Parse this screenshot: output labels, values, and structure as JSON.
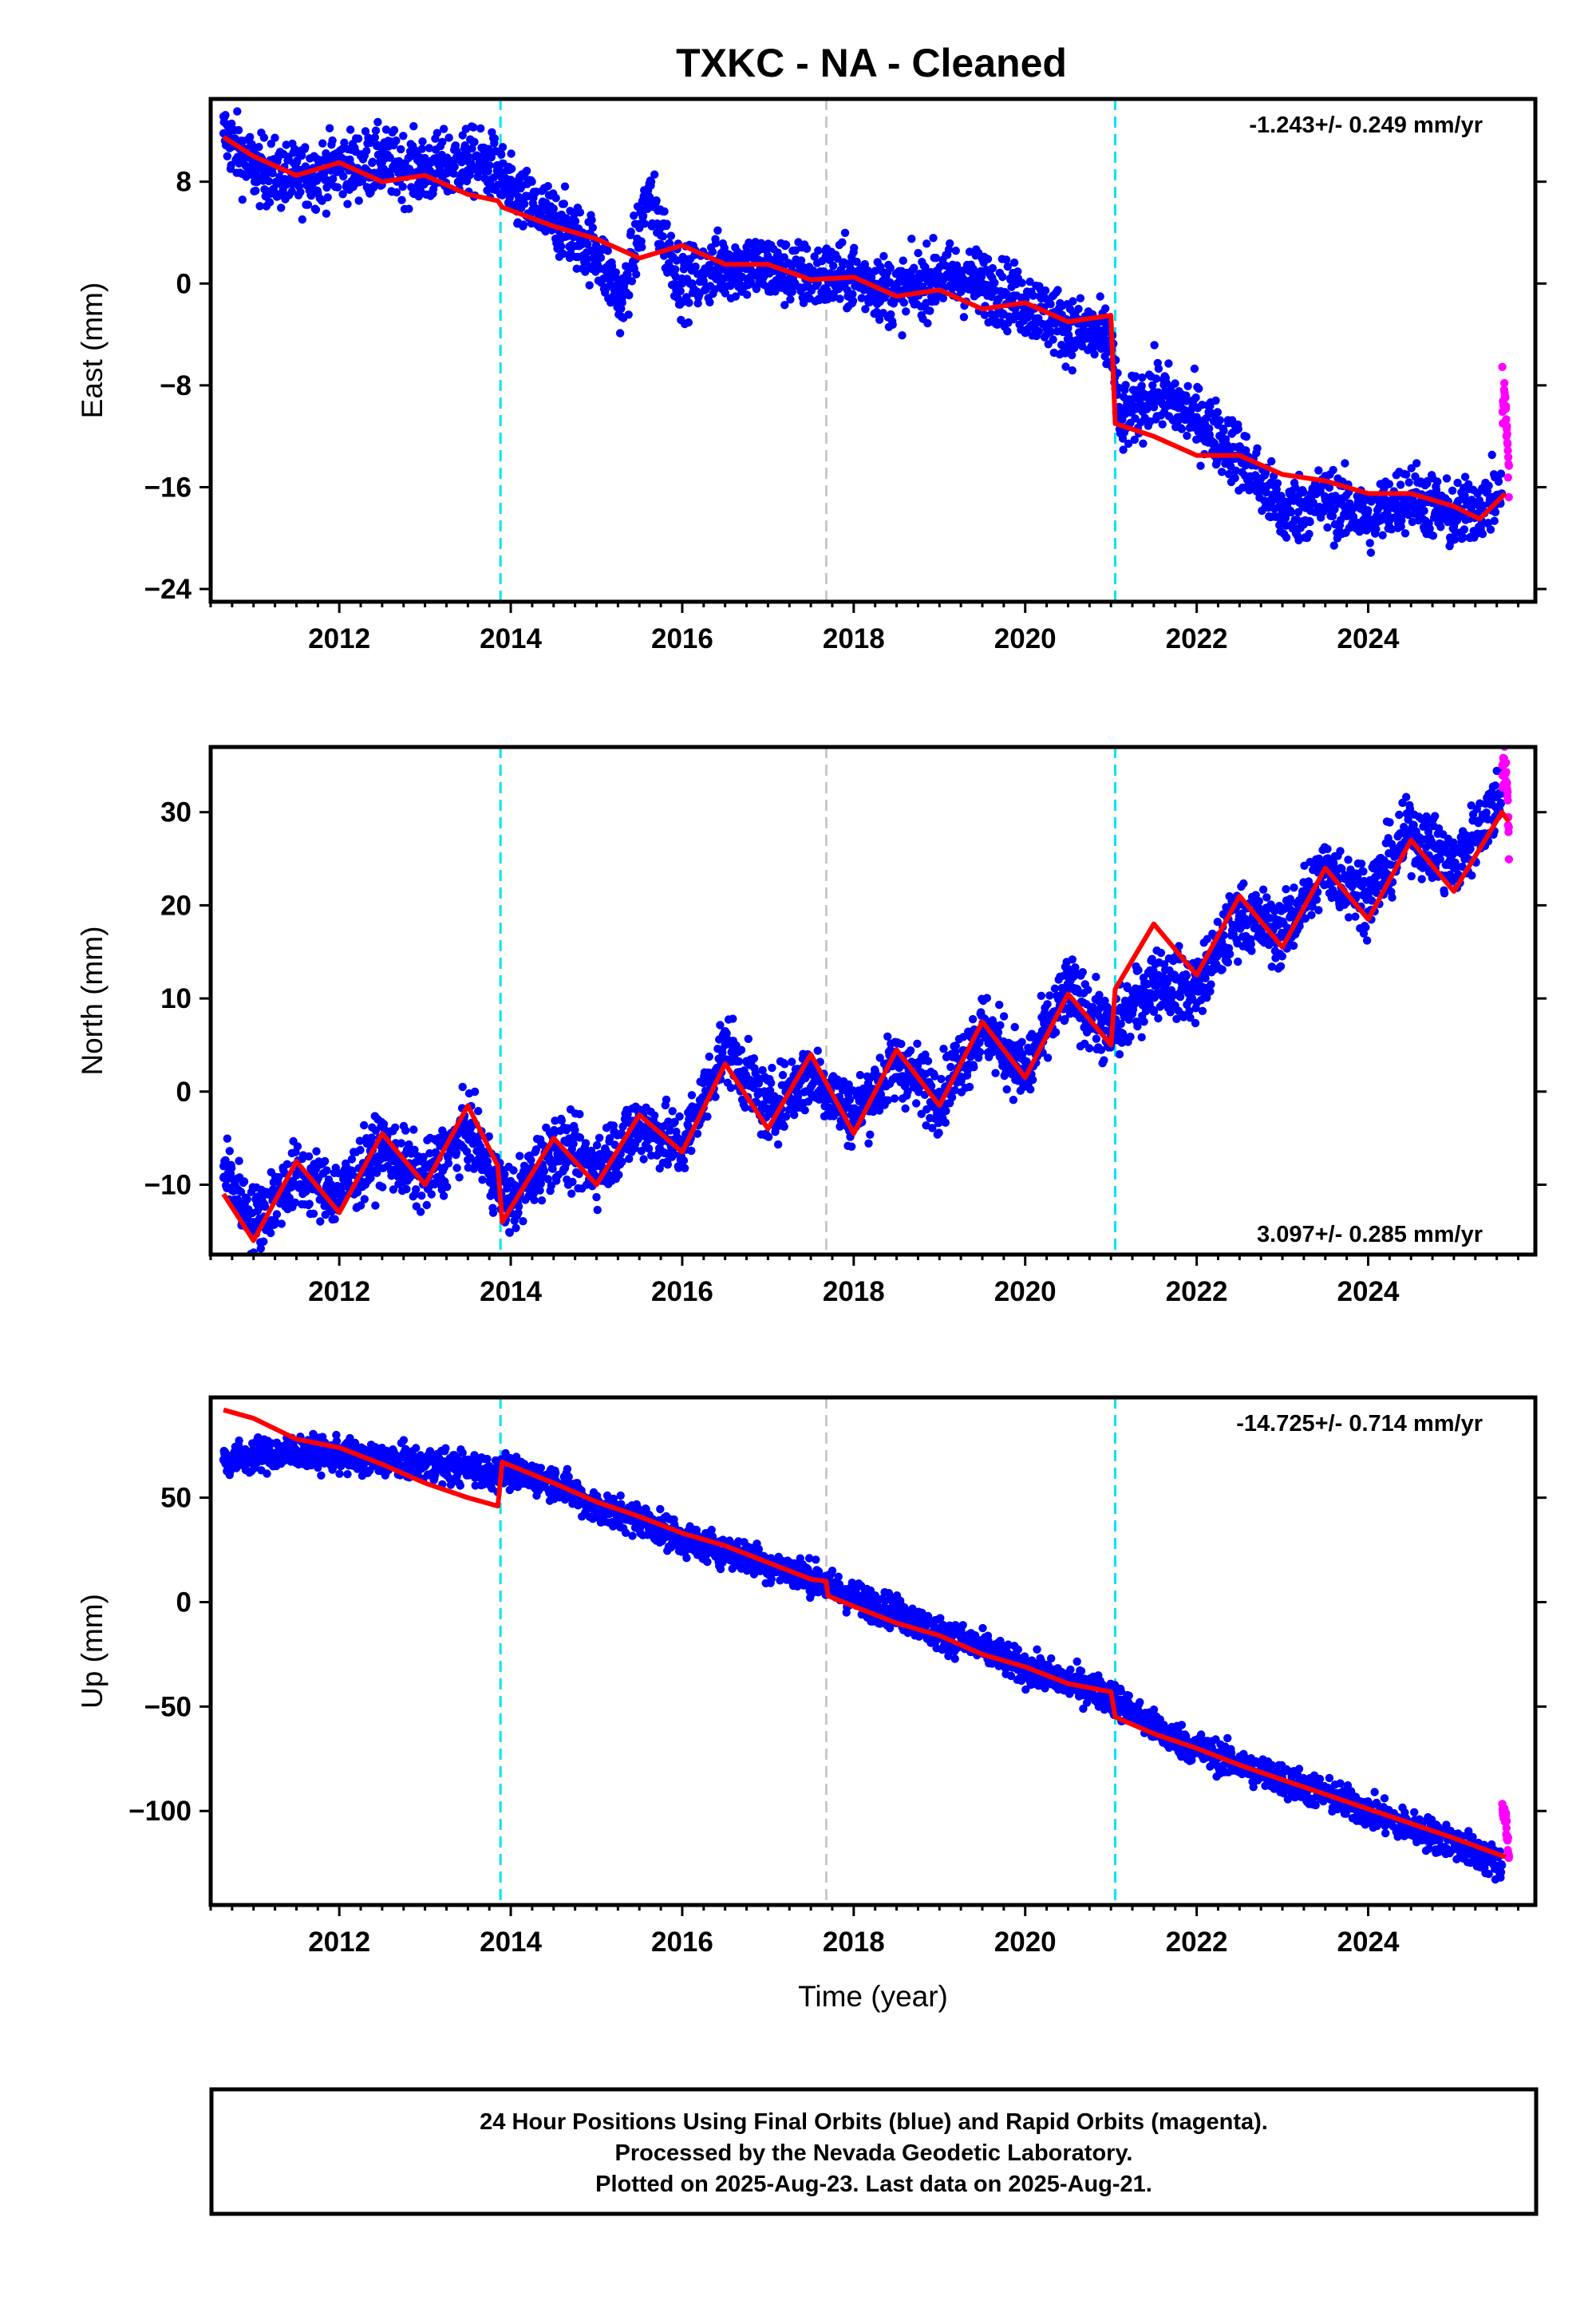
{
  "title": "TXKC  - NA - Cleaned",
  "colors": {
    "final": "#0000ff",
    "rapid": "#ff00ff",
    "model": "#ff0000",
    "equipment_change": "#00e5ee",
    "other_event": "#c8c8c8",
    "frame": "#000000"
  },
  "footer": {
    "lines": [
      "24 Hour Positions Using Final Orbits (blue) and Rapid Orbits (magenta).",
      "Processed by the Nevada Geodetic Laboratory.",
      "Plotted on 2025-Aug-23. Last data on 2025-Aug-21."
    ]
  },
  "chart_data": [
    {
      "type": "scatter",
      "component": "east",
      "ylabel": "East (mm)",
      "xlabel": "",
      "xlim": [
        2010.5,
        2025.95
      ],
      "ylim": [
        -25,
        14.5
      ],
      "yticks": [
        8,
        0,
        -8,
        -16,
        -24
      ],
      "xticks": [
        2012,
        2014,
        2016,
        2018,
        2020,
        2022,
        2024
      ],
      "rate_label": "-1.243+/- 0.249 mm/yr",
      "rate_position": "top-right",
      "events_cyan": [
        2013.88,
        2021.05
      ],
      "events_gray": [
        2017.68
      ],
      "first_data": 2010.65,
      "last_final": 2025.56,
      "last_data": 2025.64,
      "series": [
        {
          "name": "Final Orbits",
          "color": "blue",
          "points": [
            [
              2010.65,
              11.8
            ],
            [
              2011.0,
              9.0
            ],
            [
              2011.5,
              8.2
            ],
            [
              2012.0,
              9.2
            ],
            [
              2012.5,
              9.5
            ],
            [
              2013.0,
              8.8
            ],
            [
              2013.5,
              9.6
            ],
            [
              2013.85,
              9.0
            ],
            [
              2014.0,
              7.0
            ],
            [
              2014.5,
              5.0
            ],
            [
              2015.0,
              2.5
            ],
            [
              2015.3,
              -1.5
            ],
            [
              2015.6,
              7.0
            ],
            [
              2016.0,
              0.0
            ],
            [
              2016.5,
              1.5
            ],
            [
              2017.0,
              1.2
            ],
            [
              2017.5,
              0.5
            ],
            [
              2018.0,
              0.6
            ],
            [
              2018.5,
              -0.8
            ],
            [
              2019.0,
              0.6
            ],
            [
              2019.5,
              0.0
            ],
            [
              2020.0,
              -1.5
            ],
            [
              2020.5,
              -3.5
            ],
            [
              2021.0,
              -4.5
            ],
            [
              2021.1,
              -11.0
            ],
            [
              2021.5,
              -8.5
            ],
            [
              2022.0,
              -10.5
            ],
            [
              2022.5,
              -13.5
            ],
            [
              2023.0,
              -18.0
            ],
            [
              2023.5,
              -17.0
            ],
            [
              2024.0,
              -18.5
            ],
            [
              2024.5,
              -16.5
            ],
            [
              2025.0,
              -18.5
            ],
            [
              2025.56,
              -16.5
            ]
          ]
        },
        {
          "name": "Rapid Orbits",
          "color": "magenta",
          "points": [
            [
              2025.6,
              -9.0
            ],
            [
              2025.62,
              -12.5
            ],
            [
              2025.64,
              -15.0
            ]
          ]
        },
        {
          "name": "Model",
          "color": "red",
          "points": [
            [
              2010.65,
              11.5
            ],
            [
              2011.0,
              10.0
            ],
            [
              2011.5,
              8.5
            ],
            [
              2012.0,
              9.5
            ],
            [
              2012.5,
              8.0
            ],
            [
              2013.0,
              8.5
            ],
            [
              2013.5,
              7.0
            ],
            [
              2013.85,
              6.5
            ],
            [
              2013.9,
              6.0
            ],
            [
              2014.5,
              4.5
            ],
            [
              2015.0,
              3.5
            ],
            [
              2015.5,
              2.0
            ],
            [
              2016.0,
              3.0
            ],
            [
              2016.5,
              1.5
            ],
            [
              2017.0,
              1.5
            ],
            [
              2017.5,
              0.3
            ],
            [
              2018.0,
              0.5
            ],
            [
              2018.5,
              -1.0
            ],
            [
              2019.0,
              -0.5
            ],
            [
              2019.5,
              -2.0
            ],
            [
              2020.0,
              -1.5
            ],
            [
              2020.5,
              -3.0
            ],
            [
              2021.0,
              -2.5
            ],
            [
              2021.05,
              -11.0
            ],
            [
              2021.5,
              -12.0
            ],
            [
              2022.0,
              -13.5
            ],
            [
              2022.5,
              -13.5
            ],
            [
              2023.0,
              -15.0
            ],
            [
              2023.5,
              -15.5
            ],
            [
              2024.0,
              -16.5
            ],
            [
              2024.5,
              -16.5
            ],
            [
              2025.0,
              -17.5
            ],
            [
              2025.3,
              -18.5
            ],
            [
              2025.6,
              -16.5
            ]
          ]
        }
      ]
    },
    {
      "type": "scatter",
      "component": "north",
      "ylabel": "North (mm)",
      "xlabel": "",
      "xlim": [
        2010.5,
        2025.95
      ],
      "ylim": [
        -17.5,
        37
      ],
      "yticks": [
        30,
        20,
        10,
        0,
        -10
      ],
      "xticks": [
        2012,
        2014,
        2016,
        2018,
        2020,
        2022,
        2024
      ],
      "rate_label": "3.097+/- 0.285 mm/yr",
      "rate_position": "bottom-right",
      "events_cyan": [
        2013.88,
        2021.05
      ],
      "events_gray": [
        2017.68
      ],
      "first_data": 2010.65,
      "last_final": 2025.56,
      "last_data": 2025.64,
      "series": [
        {
          "name": "Final Orbits",
          "color": "blue",
          "points": [
            [
              2010.65,
              -8.0
            ],
            [
              2011.0,
              -14.0
            ],
            [
              2011.5,
              -9.0
            ],
            [
              2012.0,
              -11.0
            ],
            [
              2012.5,
              -6.0
            ],
            [
              2013.0,
              -9.5
            ],
            [
              2013.5,
              -4.0
            ],
            [
              2013.85,
              -10.0
            ],
            [
              2014.0,
              -12.0
            ],
            [
              2014.5,
              -6.0
            ],
            [
              2015.0,
              -8.0
            ],
            [
              2015.5,
              -3.5
            ],
            [
              2016.0,
              -6.0
            ],
            [
              2016.5,
              5.0
            ],
            [
              2017.0,
              -2.0
            ],
            [
              2017.5,
              2.0
            ],
            [
              2018.0,
              -2.5
            ],
            [
              2018.5,
              3.0
            ],
            [
              2019.0,
              -0.5
            ],
            [
              2019.5,
              7.0
            ],
            [
              2020.0,
              2.0
            ],
            [
              2020.5,
              11.0
            ],
            [
              2021.0,
              6.0
            ],
            [
              2021.5,
              12.0
            ],
            [
              2022.0,
              11.0
            ],
            [
              2022.5,
              19.0
            ],
            [
              2023.0,
              17.0
            ],
            [
              2023.5,
              24.0
            ],
            [
              2024.0,
              21.0
            ],
            [
              2024.5,
              28.0
            ],
            [
              2025.0,
              24.0
            ],
            [
              2025.56,
              32.0
            ]
          ]
        },
        {
          "name": "Rapid Orbits",
          "color": "magenta",
          "points": [
            [
              2025.6,
              35.0
            ],
            [
              2025.62,
              32.0
            ],
            [
              2025.64,
              28.5
            ]
          ]
        },
        {
          "name": "Model",
          "color": "red",
          "points": [
            [
              2010.65,
              -11.0
            ],
            [
              2011.0,
              -16.0
            ],
            [
              2011.5,
              -7.5
            ],
            [
              2012.0,
              -13.0
            ],
            [
              2012.5,
              -4.5
            ],
            [
              2013.0,
              -10.0
            ],
            [
              2013.5,
              -1.5
            ],
            [
              2013.85,
              -8.0
            ],
            [
              2013.9,
              -14.0
            ],
            [
              2014.5,
              -5.0
            ],
            [
              2015.0,
              -10.0
            ],
            [
              2015.5,
              -2.5
            ],
            [
              2016.0,
              -6.5
            ],
            [
              2016.5,
              3.0
            ],
            [
              2017.0,
              -4.0
            ],
            [
              2017.5,
              4.0
            ],
            [
              2018.0,
              -4.5
            ],
            [
              2018.5,
              4.5
            ],
            [
              2019.0,
              -1.5
            ],
            [
              2019.5,
              7.5
            ],
            [
              2020.0,
              1.5
            ],
            [
              2020.5,
              10.5
            ],
            [
              2021.0,
              5.0
            ],
            [
              2021.05,
              11.0
            ],
            [
              2021.5,
              18.0
            ],
            [
              2022.0,
              12.5
            ],
            [
              2022.5,
              21.0
            ],
            [
              2023.0,
              15.5
            ],
            [
              2023.5,
              24.0
            ],
            [
              2024.0,
              18.5
            ],
            [
              2024.5,
              27.0
            ],
            [
              2025.0,
              21.5
            ],
            [
              2025.56,
              30.0
            ],
            [
              2025.64,
              29.0
            ]
          ]
        }
      ]
    },
    {
      "type": "scatter",
      "component": "up",
      "ylabel": "Up (mm)",
      "xlabel": "Time (year)",
      "xlim": [
        2010.5,
        2025.95
      ],
      "ylim": [
        -145,
        98
      ],
      "yticks": [
        50,
        0,
        -50,
        -100
      ],
      "xticks": [
        2012,
        2014,
        2016,
        2018,
        2020,
        2022,
        2024
      ],
      "rate_label": "-14.725+/- 0.714 mm/yr",
      "rate_position": "top-right",
      "events_cyan": [
        2013.88,
        2021.05
      ],
      "events_gray": [
        2017.68
      ],
      "first_data": 2010.65,
      "last_final": 2025.56,
      "last_data": 2025.64,
      "series": [
        {
          "name": "Final Orbits",
          "color": "blue",
          "points": [
            [
              2010.65,
              68.0
            ],
            [
              2011.0,
              70.0
            ],
            [
              2011.5,
              72.0
            ],
            [
              2012.0,
              70.0
            ],
            [
              2012.5,
              68.0
            ],
            [
              2013.0,
              66.0
            ],
            [
              2013.5,
              64.0
            ],
            [
              2013.85,
              62.0
            ],
            [
              2014.0,
              62.0
            ],
            [
              2014.5,
              58.0
            ],
            [
              2015.0,
              45.0
            ],
            [
              2015.5,
              40.0
            ],
            [
              2016.0,
              30.0
            ],
            [
              2016.5,
              25.0
            ],
            [
              2017.0,
              18.0
            ],
            [
              2017.5,
              12.0
            ],
            [
              2018.0,
              2.0
            ],
            [
              2018.5,
              -5.0
            ],
            [
              2019.0,
              -15.0
            ],
            [
              2019.5,
              -22.0
            ],
            [
              2020.0,
              -32.0
            ],
            [
              2020.5,
              -38.0
            ],
            [
              2021.0,
              -45.0
            ],
            [
              2021.5,
              -60.0
            ],
            [
              2022.0,
              -70.0
            ],
            [
              2022.5,
              -78.0
            ],
            [
              2023.0,
              -85.0
            ],
            [
              2023.5,
              -92.0
            ],
            [
              2024.0,
              -100.0
            ],
            [
              2024.5,
              -108.0
            ],
            [
              2025.0,
              -115.0
            ],
            [
              2025.56,
              -126.0
            ]
          ]
        },
        {
          "name": "Rapid Orbits",
          "color": "magenta",
          "points": [
            [
              2025.6,
              -100.0
            ],
            [
              2025.62,
              -112.0
            ],
            [
              2025.64,
              -120.0
            ]
          ]
        },
        {
          "name": "Model",
          "color": "red",
          "points": [
            [
              2010.65,
              92.0
            ],
            [
              2011.0,
              88.0
            ],
            [
              2011.5,
              78.0
            ],
            [
              2012.0,
              74.0
            ],
            [
              2012.5,
              66.0
            ],
            [
              2013.0,
              57.0
            ],
            [
              2013.5,
              50.0
            ],
            [
              2013.85,
              46.0
            ],
            [
              2013.9,
              67.0
            ],
            [
              2014.5,
              57.0
            ],
            [
              2015.0,
              48.0
            ],
            [
              2015.5,
              41.0
            ],
            [
              2016.0,
              33.0
            ],
            [
              2016.5,
              27.0
            ],
            [
              2017.0,
              19.0
            ],
            [
              2017.5,
              11.0
            ],
            [
              2017.68,
              10.0
            ],
            [
              2017.7,
              3.0
            ],
            [
              2018.0,
              -2.0
            ],
            [
              2018.5,
              -10.0
            ],
            [
              2019.0,
              -16.0
            ],
            [
              2019.5,
              -25.0
            ],
            [
              2020.0,
              -31.0
            ],
            [
              2020.5,
              -39.0
            ],
            [
              2021.0,
              -43.0
            ],
            [
              2021.05,
              -55.0
            ],
            [
              2021.5,
              -63.0
            ],
            [
              2022.0,
              -70.0
            ],
            [
              2022.5,
              -78.0
            ],
            [
              2023.0,
              -85.0
            ],
            [
              2023.5,
              -92.0
            ],
            [
              2024.0,
              -99.0
            ],
            [
              2024.5,
              -106.0
            ],
            [
              2025.0,
              -113.0
            ],
            [
              2025.6,
              -122.0
            ]
          ]
        }
      ]
    }
  ]
}
